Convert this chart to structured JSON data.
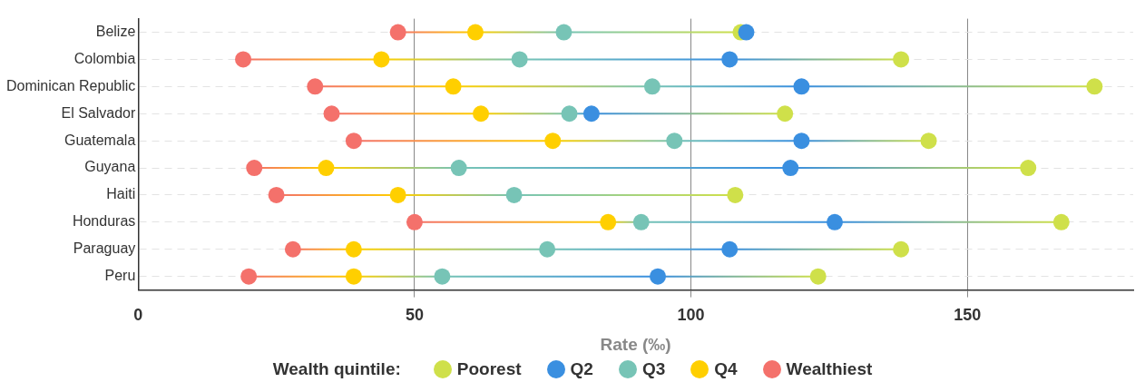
{
  "chart_data": {
    "type": "scatter",
    "orientation": "horizontal",
    "xlabel": "Rate (‰)",
    "legend_title": "Wealth quintile:",
    "legend": "bottom",
    "grid": true,
    "marker": "circle",
    "categories": [
      "Belize",
      "Colombia",
      "Dominican Republic",
      "El Salvador",
      "Guatemala",
      "Guyana",
      "Haiti",
      "Honduras",
      "Paraguay",
      "Peru"
    ],
    "xlim": [
      0,
      180
    ],
    "xticks": [
      0,
      50,
      100,
      150
    ],
    "series": [
      {
        "name": "Poorest",
        "color": "#cfe04a",
        "values": [
          109,
          138,
          173,
          117,
          143,
          161,
          108,
          167,
          138,
          123
        ]
      },
      {
        "name": "Q2",
        "color": "#3a8fe0",
        "values": [
          110,
          107,
          120,
          82,
          120,
          118,
          null,
          126,
          107,
          94
        ]
      },
      {
        "name": "Q3",
        "color": "#77c4b6",
        "values": [
          77,
          69,
          93,
          78,
          97,
          58,
          68,
          91,
          74,
          55
        ]
      },
      {
        "name": "Q4",
        "color": "#ffcf00",
        "values": [
          61,
          44,
          57,
          62,
          75,
          34,
          47,
          85,
          39,
          39
        ]
      },
      {
        "name": "Wealthiest",
        "color": "#f4716b",
        "values": [
          47,
          19,
          32,
          35,
          39,
          21,
          25,
          50,
          28,
          20
        ]
      }
    ]
  }
}
